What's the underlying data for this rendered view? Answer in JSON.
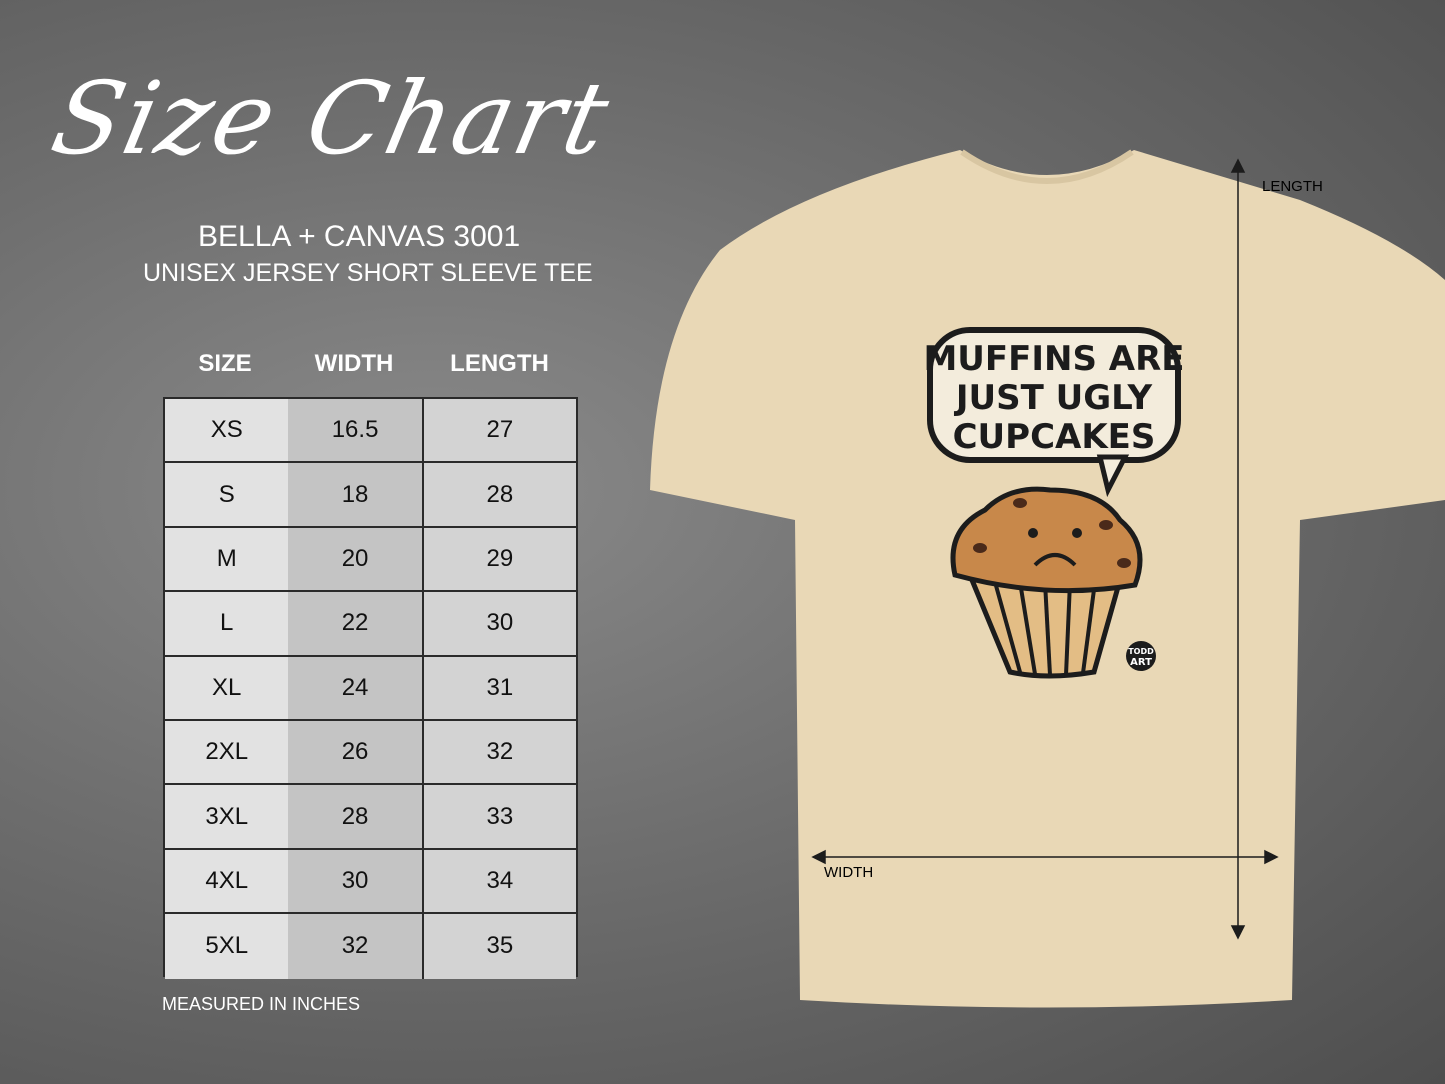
{
  "header": {
    "title": "Size Chart",
    "brand": "BELLA + CANVAS 3001",
    "subtitle": "UNISEX JERSEY SHORT SLEEVE TEE"
  },
  "table": {
    "columns": [
      "SIZE",
      "WIDTH",
      "LENGTH"
    ],
    "rows": [
      [
        "XS",
        "16.5",
        "27"
      ],
      [
        "S",
        "18",
        "28"
      ],
      [
        "M",
        "20",
        "29"
      ],
      [
        "L",
        "22",
        "30"
      ],
      [
        "XL",
        "24",
        "31"
      ],
      [
        "2XL",
        "26",
        "32"
      ],
      [
        "3XL",
        "28",
        "33"
      ],
      [
        "4XL",
        "30",
        "34"
      ],
      [
        "5XL",
        "32",
        "35"
      ]
    ]
  },
  "note": "MEASURED IN INCHES",
  "shirt": {
    "color": "#e9d8b6",
    "design_text": [
      "MUFFINS ARE",
      "JUST UGLY",
      "CUPCAKES"
    ],
    "logo": "TODD ART",
    "length_label": "LENGTH",
    "width_label": "WIDTH"
  }
}
